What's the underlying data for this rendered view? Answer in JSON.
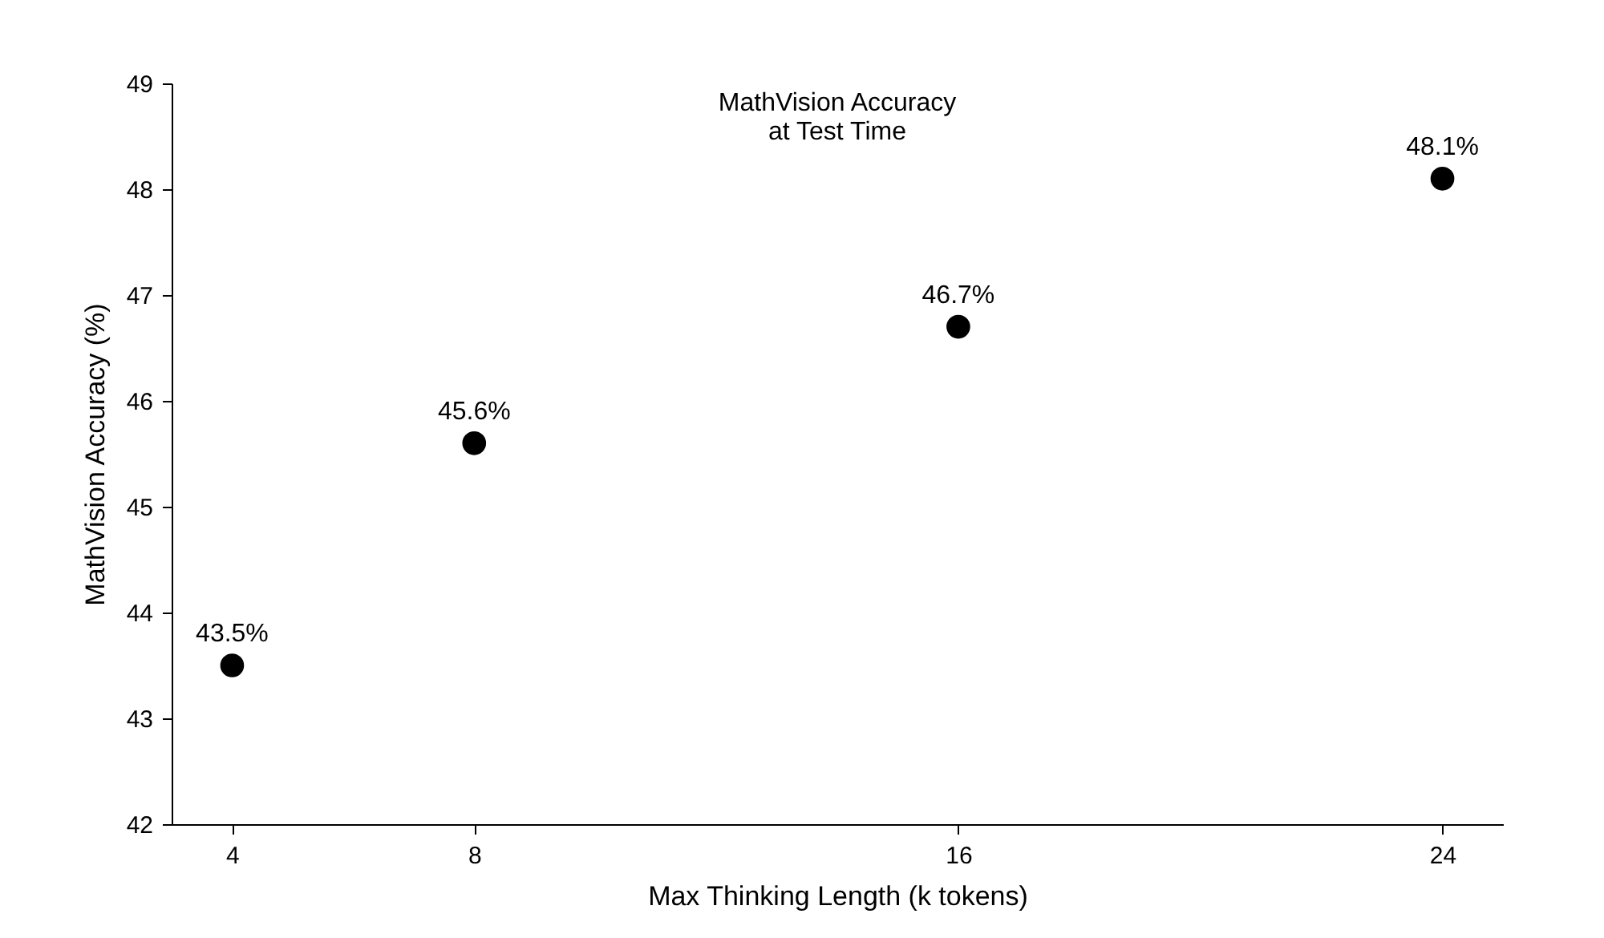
{
  "chart_data": {
    "type": "scatter",
    "title": "MathVision Accuracy\nat Test Time",
    "xlabel": "Max Thinking Length (k tokens)",
    "ylabel": "MathVision Accuracy (%)",
    "x": [
      4,
      8,
      16,
      24
    ],
    "series": [
      {
        "color": "#000000",
        "values": [
          43.5,
          45.6,
          46.7,
          48.1
        ],
        "value_labels": [
          "43.5%",
          "45.6%",
          "46.7%",
          "48.1%"
        ]
      }
    ],
    "xlim": [
      3,
      25
    ],
    "xticks": [
      4,
      8,
      16,
      24
    ],
    "ylim": [
      42,
      49
    ],
    "yticks": [
      42,
      43,
      44,
      45,
      46,
      47,
      48,
      49
    ],
    "grid": false,
    "marker": "circle"
  }
}
